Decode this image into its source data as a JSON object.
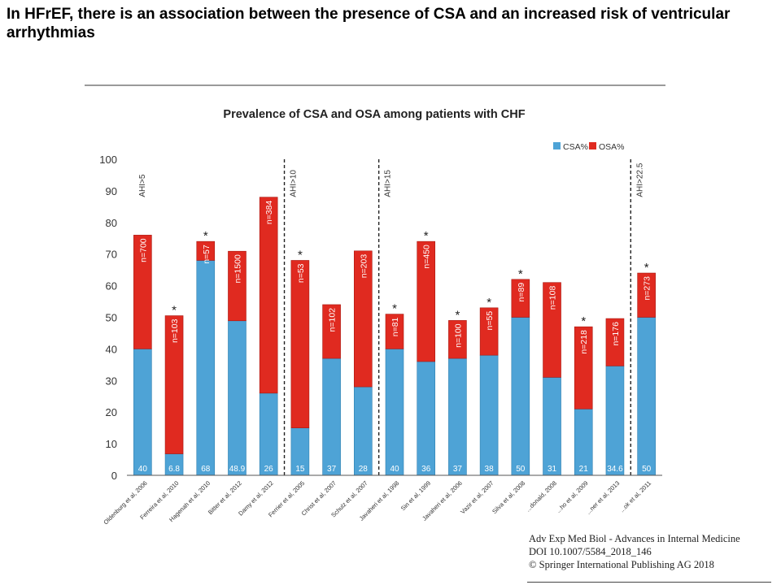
{
  "slide": {
    "title": "In HFrEF, there is an association between the presence of CSA and an increased risk of ventricular arrhythmias"
  },
  "citation": {
    "line1": "Adv Exp Med Biol - Advances in Internal Medicine",
    "line2": "DOI 10.1007/5584_2018_146",
    "line3": "© Springer International Publishing AG 2018"
  },
  "chart_data": {
    "type": "bar",
    "stacked": true,
    "title": "Prevalence of CSA and OSA among patients with CHF",
    "xlabel": "",
    "ylabel": "",
    "ylim": [
      0,
      100
    ],
    "yticks": [
      0,
      10,
      20,
      30,
      40,
      50,
      60,
      70,
      80,
      90,
      100
    ],
    "grid": false,
    "legend_position": "top-right",
    "categories": [
      "Oldenburg et al, 2006",
      "Ferreira et al, 2010",
      "Hagenah et al, 2010",
      "Bitter et al, 2012",
      "Damy et al, 2012",
      "Ferrier et al, 2005",
      "Christ et al, 2007",
      "Schulz et al, 2007",
      "Javaheri et al, 1998",
      "Sin et al, 1999",
      "Javaheri et al, 2006",
      "Vazir et al, 2007",
      "Silva et al, 2008",
      "...donald, 2008",
      "...ho et al, 2009",
      "...ner et al, 2013",
      "...ok et al, 2011"
    ],
    "series": [
      {
        "name": "CSA%",
        "color": "#4ea3d6",
        "values": [
          40,
          6.8,
          68,
          48.9,
          26,
          15,
          37,
          28,
          40,
          36,
          37,
          38,
          50,
          31,
          21,
          34.6,
          50
        ],
        "labels": [
          "40",
          "6.8",
          "68",
          "48.9",
          "26",
          "15",
          "37",
          "28",
          "40",
          "36",
          "37",
          "38",
          "50",
          "31",
          "21",
          "34.6",
          "50"
        ]
      },
      {
        "name": "OSA%",
        "color": "#e02a20",
        "values": [
          36,
          43.7,
          6,
          22,
          62,
          53,
          17,
          43,
          11,
          38,
          12,
          15,
          12,
          30,
          26,
          15,
          14
        ]
      }
    ],
    "sample_sizes": [
      "n=700",
      "n=103",
      "n=57",
      "n=1500",
      "n=384",
      "n=53",
      "n=102",
      "n=203",
      "n=81",
      "n=450",
      "n=100",
      "n=55",
      "n=89",
      "n=108",
      "n=218",
      "n=176",
      "n=273"
    ],
    "significance_marks": [
      "",
      "*",
      "*",
      "",
      "",
      "*",
      "",
      "",
      "*",
      "*",
      "*",
      "*",
      "*",
      "",
      "*",
      "",
      "*"
    ],
    "group_dividers": [
      {
        "after_index": 4,
        "label": "AHI>10"
      },
      {
        "after_index": 7,
        "label": "AHI>15"
      },
      {
        "after_index": 15,
        "label": "AHI>22.5"
      }
    ],
    "first_group_label": "AHI>5"
  }
}
